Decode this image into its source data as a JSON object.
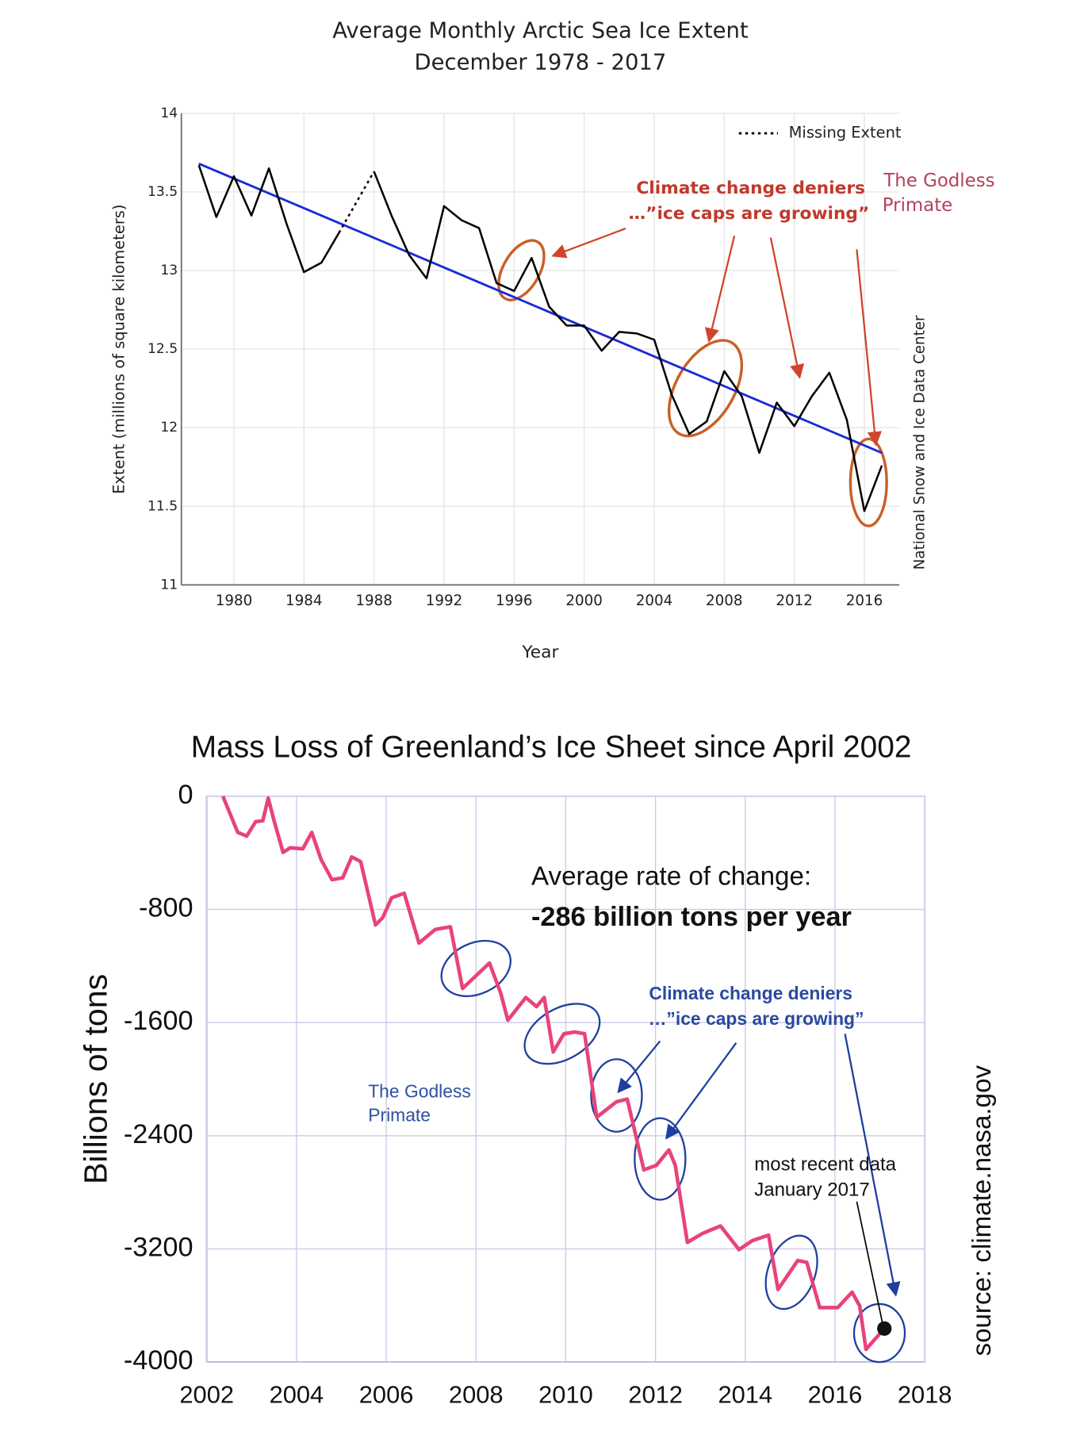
{
  "chart_data": [
    {
      "type": "line",
      "title": "Average Monthly Arctic Sea Ice Extent",
      "subtitle": "December 1978 - 2017",
      "x_label": "Year",
      "y_label": "Extent (millions of square kilometers)",
      "x": [
        1978,
        1979,
        1980,
        1981,
        1982,
        1983,
        1984,
        1985,
        1986,
        1987,
        1988,
        1989,
        1990,
        1991,
        1992,
        1993,
        1994,
        1995,
        1996,
        1997,
        1998,
        1999,
        2000,
        2001,
        2002,
        2003,
        2004,
        2005,
        2006,
        2007,
        2008,
        2009,
        2010,
        2011,
        2012,
        2013,
        2014,
        2015,
        2016,
        2017
      ],
      "values": [
        13.67,
        13.34,
        13.6,
        13.35,
        13.65,
        13.3,
        12.99,
        13.05,
        13.24,
        null,
        13.63,
        13.35,
        13.1,
        12.95,
        13.41,
        13.32,
        13.27,
        12.92,
        12.87,
        13.08,
        12.77,
        12.65,
        12.65,
        12.49,
        12.61,
        12.6,
        12.56,
        12.21,
        11.96,
        12.04,
        12.36,
        12.2,
        11.84,
        12.16,
        12.01,
        12.2,
        12.35,
        12.05,
        11.47,
        11.76
      ],
      "color": "#000000",
      "missing": {
        "label": "Missing Extent",
        "style": "dotted"
      },
      "trend": {
        "x": [
          1978,
          2017
        ],
        "values": [
          13.68,
          11.84
        ],
        "color": "#1a2bd6"
      },
      "xlim": [
        1977,
        2018
      ],
      "ylim": [
        11,
        14
      ],
      "xticks": [
        1980,
        1984,
        1988,
        1992,
        1996,
        2000,
        2004,
        2008,
        2012,
        2016
      ],
      "yticks": [
        11,
        11.5,
        12,
        12.5,
        13,
        13.5,
        14
      ],
      "grid": true,
      "annotations": {
        "deniers": [
          "Climate change deniers",
          "…”ice caps are growing”"
        ],
        "author": [
          "The Godless",
          "Primate"
        ],
        "source": "National Snow and Ice Data Center"
      }
    },
    {
      "type": "line",
      "title": "Mass Loss of Greenland’s Ice Sheet since April 2002",
      "y_label": "Billions of tons",
      "x": [
        2002.36,
        2002.69,
        2002.89,
        2003.09,
        2003.25,
        2003.37,
        2003.5,
        2003.7,
        2003.86,
        2004.14,
        2004.34,
        2004.55,
        2004.79,
        2005.03,
        2005.23,
        2005.43,
        2005.76,
        2005.92,
        2006.12,
        2006.4,
        2006.73,
        2007.09,
        2007.43,
        2007.7,
        2008.02,
        2008.3,
        2008.55,
        2008.71,
        2009.11,
        2009.35,
        2009.52,
        2009.72,
        2009.96,
        2010.2,
        2010.42,
        2010.69,
        2011.13,
        2011.37,
        2011.74,
        2012.02,
        2012.3,
        2012.44,
        2012.71,
        2013.05,
        2013.45,
        2013.86,
        2014.16,
        2014.52,
        2014.73,
        2015.17,
        2015.37,
        2015.66,
        2016.06,
        2016.38,
        2016.55,
        2016.69,
        2017.1
      ],
      "values": [
        0,
        -256,
        -282,
        -180,
        -173,
        -13,
        -173,
        -397,
        -365,
        -372,
        -256,
        -449,
        -590,
        -577,
        -429,
        -462,
        -910,
        -859,
        -718,
        -686,
        -1038,
        -942,
        -923,
        -1359,
        -1263,
        -1179,
        -1391,
        -1583,
        -1423,
        -1487,
        -1423,
        -1808,
        -1679,
        -1667,
        -1679,
        -2269,
        -2160,
        -2141,
        -2641,
        -2609,
        -2500,
        -2609,
        -3154,
        -3090,
        -3038,
        -3205,
        -3141,
        -3103,
        -3487,
        -3282,
        -3295,
        -3615,
        -3615,
        -3506,
        -3603,
        -3910,
        -3763
      ],
      "color": "#e8437a",
      "xlim": [
        2002,
        2018
      ],
      "ylim": [
        -4000,
        0
      ],
      "xticks": [
        2002,
        2004,
        2006,
        2008,
        2010,
        2012,
        2014,
        2016,
        2018
      ],
      "yticks": [
        0,
        -800,
        -1600,
        -2400,
        -3200,
        -4000
      ],
      "grid": true,
      "annotations": {
        "rate": [
          "Average rate of change:",
          "-286 billion tons per year"
        ],
        "deniers": [
          "Climate change deniers",
          "…”ice caps are growing”"
        ],
        "author": [
          "The Godless",
          "Primate"
        ],
        "recent": [
          "most recent data",
          "January 2017"
        ],
        "source": "source: climate.nasa.gov"
      }
    }
  ]
}
